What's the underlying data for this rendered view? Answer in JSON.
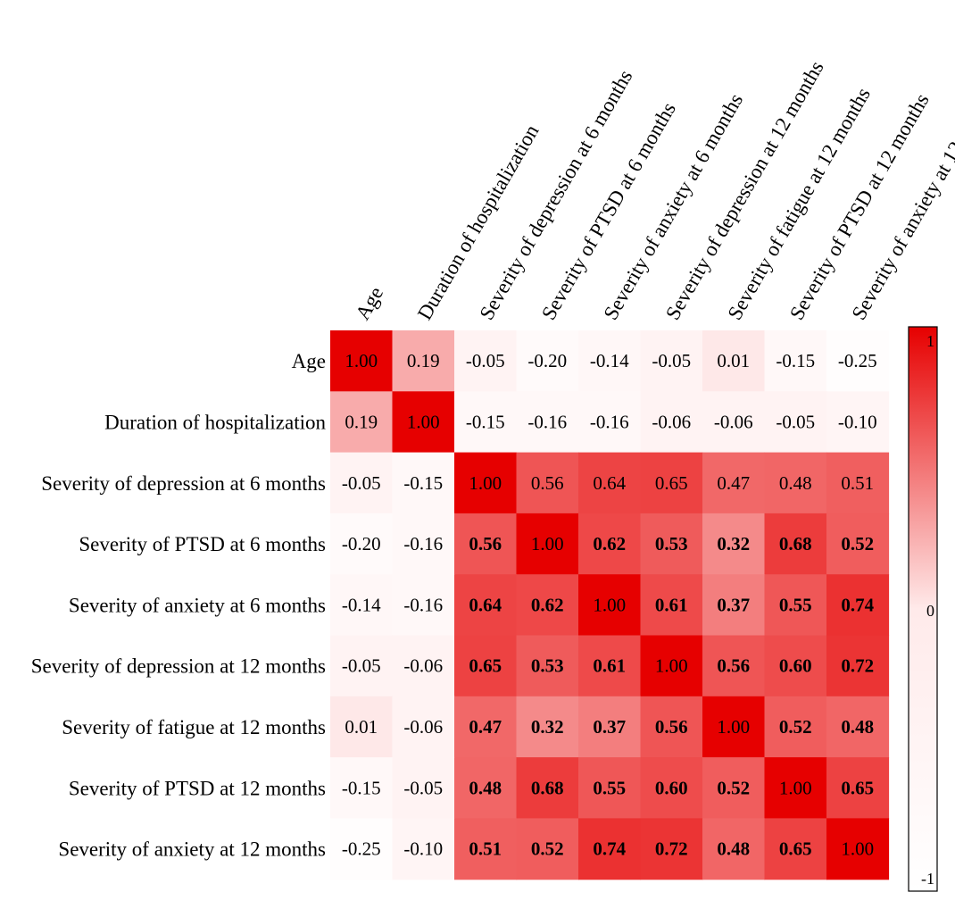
{
  "chart_data": {
    "type": "heatmap",
    "title": "",
    "xlabel": "",
    "ylabel": "",
    "variables": [
      "Age",
      "Duration of hospitalization",
      "Severity of depression at 6 months",
      "Severity of PTSD at 6 months",
      "Severity of anxiety at 6 months",
      "Severity of depression at 12 months",
      "Severity of fatigue at 12 months",
      "Severity of PTSD at 12 months",
      "Severity of anxiety at 12 months"
    ],
    "matrix": [
      [
        1.0,
        0.19,
        -0.05,
        -0.2,
        -0.14,
        -0.05,
        0.01,
        -0.15,
        -0.25
      ],
      [
        0.19,
        1.0,
        -0.15,
        -0.16,
        -0.16,
        -0.06,
        -0.06,
        -0.05,
        -0.1
      ],
      [
        -0.05,
        -0.15,
        1.0,
        0.56,
        0.64,
        0.65,
        0.47,
        0.48,
        0.51
      ],
      [
        -0.2,
        -0.16,
        0.56,
        1.0,
        0.62,
        0.53,
        0.32,
        0.68,
        0.52
      ],
      [
        -0.14,
        -0.16,
        0.64,
        0.62,
        1.0,
        0.61,
        0.37,
        0.55,
        0.74
      ],
      [
        -0.05,
        -0.06,
        0.65,
        0.53,
        0.61,
        1.0,
        0.56,
        0.6,
        0.72
      ],
      [
        0.01,
        -0.06,
        0.47,
        0.32,
        0.37,
        0.56,
        1.0,
        0.52,
        0.48
      ],
      [
        -0.15,
        -0.05,
        0.48,
        0.68,
        0.55,
        0.6,
        0.52,
        1.0,
        0.65
      ],
      [
        -0.25,
        -0.1,
        0.51,
        0.52,
        0.74,
        0.72,
        0.48,
        0.65,
        1.0
      ]
    ],
    "cell_labels": [
      [
        "1.00",
        "0.19",
        "-0.05",
        "-0.20",
        "-0.14",
        "-0.05",
        "0.01",
        "-0.15",
        "-0.25"
      ],
      [
        "0.19",
        "1.00",
        "-0.15",
        "-0.16",
        "-0.16",
        "-0.06",
        "-0.06",
        "-0.05",
        "-0.10"
      ],
      [
        "-0.05",
        "-0.15",
        "1.00",
        "0.56",
        "0.64",
        "0.65",
        "0.47",
        "0.48",
        "0.51"
      ],
      [
        "-0.20",
        "-0.16",
        "0.56",
        "1.00",
        "0.62",
        "0.53",
        "0.32",
        "0.68",
        "0.52"
      ],
      [
        "-0.14",
        "-0.16",
        "0.64",
        "0.62",
        "1.00",
        "0.61",
        "0.37",
        "0.55",
        "0.74"
      ],
      [
        "-0.05",
        "-0.06",
        "0.65",
        "0.53",
        "0.61",
        "1.00",
        "0.56",
        "0.60",
        "0.72"
      ],
      [
        "0.01",
        "-0.06",
        "0.47",
        "0.32",
        "0.37",
        "0.56",
        "1.00",
        "0.52",
        "0.48"
      ],
      [
        "-0.15",
        "-0.05",
        "0.48",
        "0.68",
        "0.55",
        "0.60",
        "0.52",
        "1.00",
        "0.65"
      ],
      [
        "-0.25",
        "-0.10",
        "0.51",
        "0.52",
        "0.74",
        "0.72",
        "0.48",
        "0.65",
        "1.00"
      ]
    ],
    "bold_cells": "values in the lower-right block of depression, PTSD, anxiety and fatigue variables are bold except the rows for depression at 6 months and the diagonal",
    "value_range": [
      -1,
      1
    ],
    "colorbar": {
      "ticks": [
        "1",
        "0",
        "-1"
      ],
      "placement": "right"
    },
    "colors": {
      "high": "#e60000",
      "mid": "#fff0f0",
      "low": "#ffffff"
    }
  }
}
